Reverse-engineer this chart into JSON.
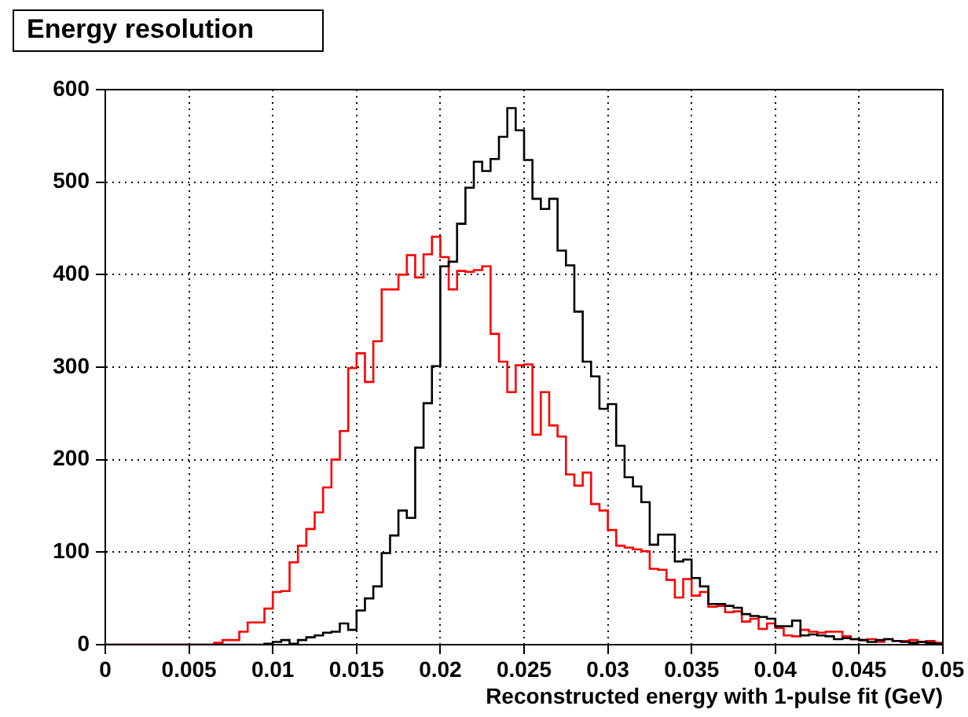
{
  "chart_data": {
    "type": "histogram",
    "title": "Energy resolution",
    "xlabel": "Reconstructed energy with 1-pulse fit (GeV)",
    "bins": [
      0,
      0.0005,
      0.001,
      0.0015,
      0.002,
      0.0025,
      0.003,
      0.0035,
      0.004,
      0.0045,
      0.005,
      0.0055,
      0.006,
      0.0065,
      0.007,
      0.0075,
      0.008,
      0.0085,
      0.009,
      0.0095,
      0.01,
      0.0105,
      0.011,
      0.0115,
      0.012,
      0.0125,
      0.013,
      0.0135,
      0.014,
      0.0145,
      0.015,
      0.0155,
      0.016,
      0.0165,
      0.017,
      0.0175,
      0.018,
      0.0185,
      0.019,
      0.0195,
      0.02,
      0.0205,
      0.021,
      0.0215,
      0.022,
      0.0225,
      0.023,
      0.0235,
      0.024,
      0.0245,
      0.025,
      0.0255,
      0.026,
      0.0265,
      0.027,
      0.0275,
      0.028,
      0.0285,
      0.029,
      0.0295,
      0.03,
      0.0305,
      0.031,
      0.0315,
      0.032,
      0.0325,
      0.033,
      0.0335,
      0.034,
      0.0345,
      0.035,
      0.0355,
      0.036,
      0.0365,
      0.037,
      0.0375,
      0.038,
      0.0385,
      0.039,
      0.0395,
      0.04,
      0.0405,
      0.041,
      0.0415,
      0.042,
      0.0425,
      0.043,
      0.0435,
      0.044,
      0.0445,
      0.045,
      0.0455,
      0.046,
      0.0465,
      0.047,
      0.0475,
      0.048,
      0.0485,
      0.049,
      0.0495,
      0.05
    ],
    "series": [
      {
        "color": "#000000",
        "values": [
          0,
          0,
          0,
          0,
          0,
          0,
          0,
          0,
          0,
          0,
          0,
          0,
          0,
          0,
          0,
          0,
          0,
          0,
          0,
          1,
          3,
          5,
          1,
          5,
          8,
          10,
          13,
          14,
          23,
          16,
          37,
          50,
          63,
          99,
          118,
          145,
          137,
          213,
          261,
          301,
          409,
          414,
          455,
          494,
          522,
          512,
          525,
          549,
          580,
          556,
          524,
          482,
          471,
          482,
          426,
          410,
          360,
          306,
          290,
          255,
          260,
          215,
          181,
          171,
          154,
          108,
          119,
          119,
          90,
          92,
          72,
          63,
          44,
          44,
          42,
          40,
          33,
          31,
          30,
          28,
          20,
          20,
          26,
          10,
          11,
          10,
          9,
          6,
          7,
          6,
          5,
          3,
          5,
          6,
          4,
          3,
          2,
          3,
          2,
          1
        ]
      },
      {
        "color": "#ff0000",
        "values": [
          0,
          0,
          0,
          0,
          0,
          0,
          0,
          0,
          0,
          0,
          0,
          0,
          0,
          2,
          5,
          5,
          14,
          24,
          24,
          39,
          57,
          58,
          89,
          107,
          125,
          143,
          170,
          200,
          231,
          299,
          315,
          284,
          328,
          384,
          384,
          400,
          421,
          397,
          422,
          441,
          419,
          384,
          404,
          403,
          405,
          409,
          336,
          306,
          273,
          302,
          303,
          227,
          273,
          237,
          225,
          184,
          172,
          186,
          152,
          145,
          124,
          107,
          105,
          103,
          101,
          82,
          81,
          70,
          51,
          71,
          53,
          57,
          41,
          42,
          35,
          36,
          25,
          28,
          17,
          23,
          18,
          10,
          9,
          16,
          14,
          13,
          14,
          14,
          9,
          6,
          5,
          6,
          3,
          6,
          4,
          4,
          5,
          3,
          4,
          2
        ]
      }
    ],
    "xlim": [
      0,
      0.05
    ],
    "xticks": [
      0,
      0.005,
      0.01,
      0.015,
      0.02,
      0.025,
      0.03,
      0.035,
      0.04,
      0.045,
      0.05
    ],
    "ylim": [
      0,
      600
    ],
    "yticks": [
      0,
      100,
      200,
      300,
      400,
      500,
      600
    ],
    "grid": true
  }
}
